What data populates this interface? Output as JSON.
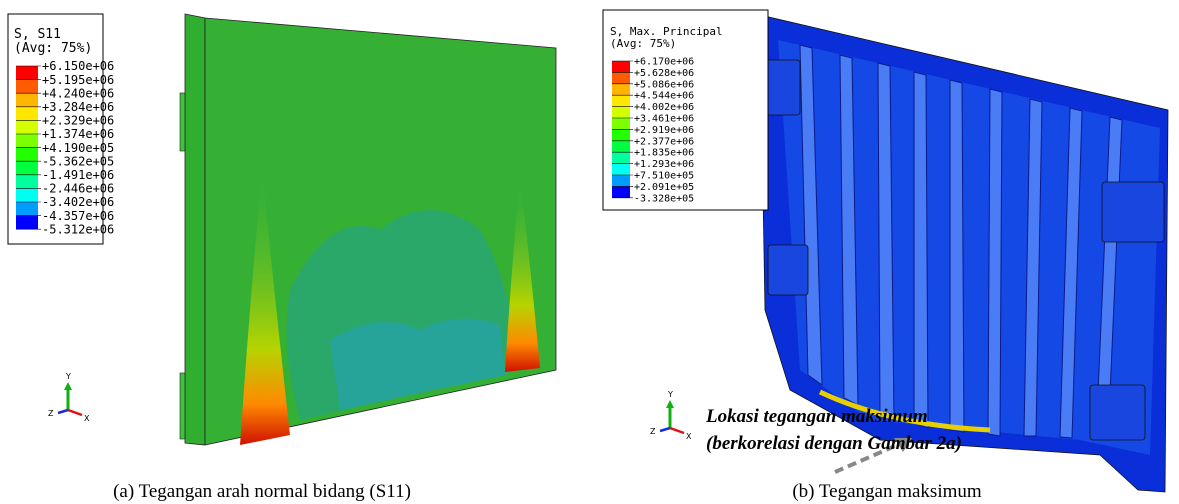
{
  "panel_a": {
    "legend": {
      "title": "S, S11",
      "subtitle": "(Avg: 75%)",
      "labels": [
        "+6.150e+06",
        "+5.195e+06",
        "+4.240e+06",
        "+3.284e+06",
        "+2.329e+06",
        "+1.374e+06",
        "+4.190e+05",
        "-5.362e+05",
        "-1.491e+06",
        "-2.446e+06",
        "-3.402e+06",
        "-4.357e+06",
        "-5.312e+06"
      ],
      "colors": [
        "#ff0000",
        "#ff5b00",
        "#ffb600",
        "#ffe700",
        "#d4ff00",
        "#7cff00",
        "#22ff00",
        "#00ff3f",
        "#00ff9d",
        "#00fff2",
        "#009dff",
        "#0000ff"
      ]
    },
    "axes": {
      "y": "Y",
      "z": "Z",
      "x": "X"
    },
    "caption": "(a) Tegangan arah normal bidang (S11)"
  },
  "panel_b": {
    "legend": {
      "title": "S, Max. Principal",
      "subtitle": "(Avg: 75%)",
      "labels": [
        "+6.170e+06",
        "+5.628e+06",
        "+5.086e+06",
        "+4.544e+06",
        "+4.002e+06",
        "+3.461e+06",
        "+2.919e+06",
        "+2.377e+06",
        "+1.835e+06",
        "+1.293e+06",
        "+7.510e+05",
        "+2.091e+05",
        "-3.328e+05"
      ],
      "colors": [
        "#ff0000",
        "#ff5b00",
        "#ffb600",
        "#ffe700",
        "#d4ff00",
        "#7cff00",
        "#22ff00",
        "#00ff3f",
        "#00ff9d",
        "#00fff2",
        "#009dff",
        "#0000ff"
      ]
    },
    "axes": {
      "y": "Y",
      "z": "Z",
      "x": "X"
    },
    "annotation": [
      "Lokasi tegangan maksimum",
      "(berkorelasi dengan Gambar 2a)"
    ],
    "caption": "(b) Tegangan maksimum"
  }
}
